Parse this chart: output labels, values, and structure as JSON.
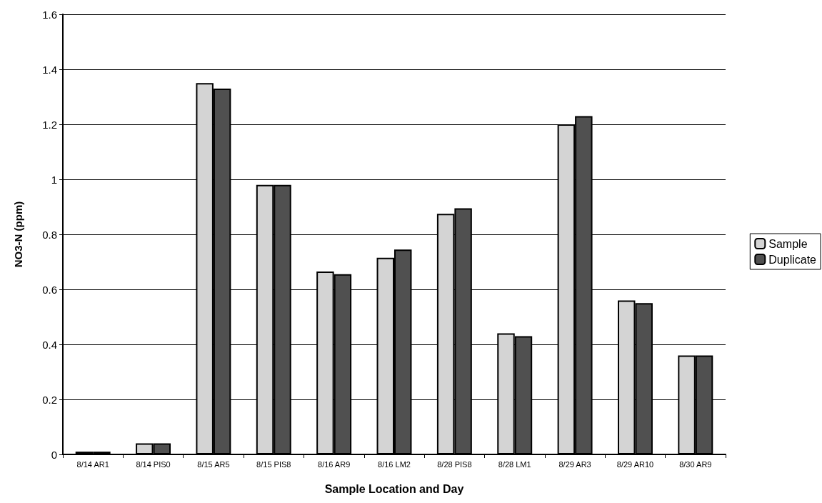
{
  "chart_data": {
    "type": "bar",
    "xlabel": "Sample Location and Day",
    "ylabel": "NO3-N (ppm)",
    "categories": [
      "8/14 AR1",
      "8/14 PIS0",
      "8/15 AR5",
      "8/15 PIS8",
      "8/16 AR9",
      "8/16 LM2",
      "8/28 PIS8",
      "8/28 LM1",
      "8/29 AR3",
      "8/29 AR10",
      "8/30 AR9"
    ],
    "series": [
      {
        "name": "Sample",
        "color": "#d4d4d4",
        "values": [
          0.01,
          0.04,
          1.35,
          0.98,
          0.665,
          0.715,
          0.875,
          0.44,
          1.2,
          0.56,
          0.36
        ]
      },
      {
        "name": "Duplicate",
        "color": "#505050",
        "values": [
          0.01,
          0.04,
          1.33,
          0.98,
          0.655,
          0.745,
          0.895,
          0.43,
          1.23,
          0.55,
          0.36
        ]
      }
    ],
    "ylim": [
      0,
      1.6
    ],
    "yticks": [
      0,
      0.2,
      0.4,
      0.6,
      0.8,
      1,
      1.2,
      1.4,
      1.6
    ],
    "grid": "y",
    "legend": "right"
  }
}
